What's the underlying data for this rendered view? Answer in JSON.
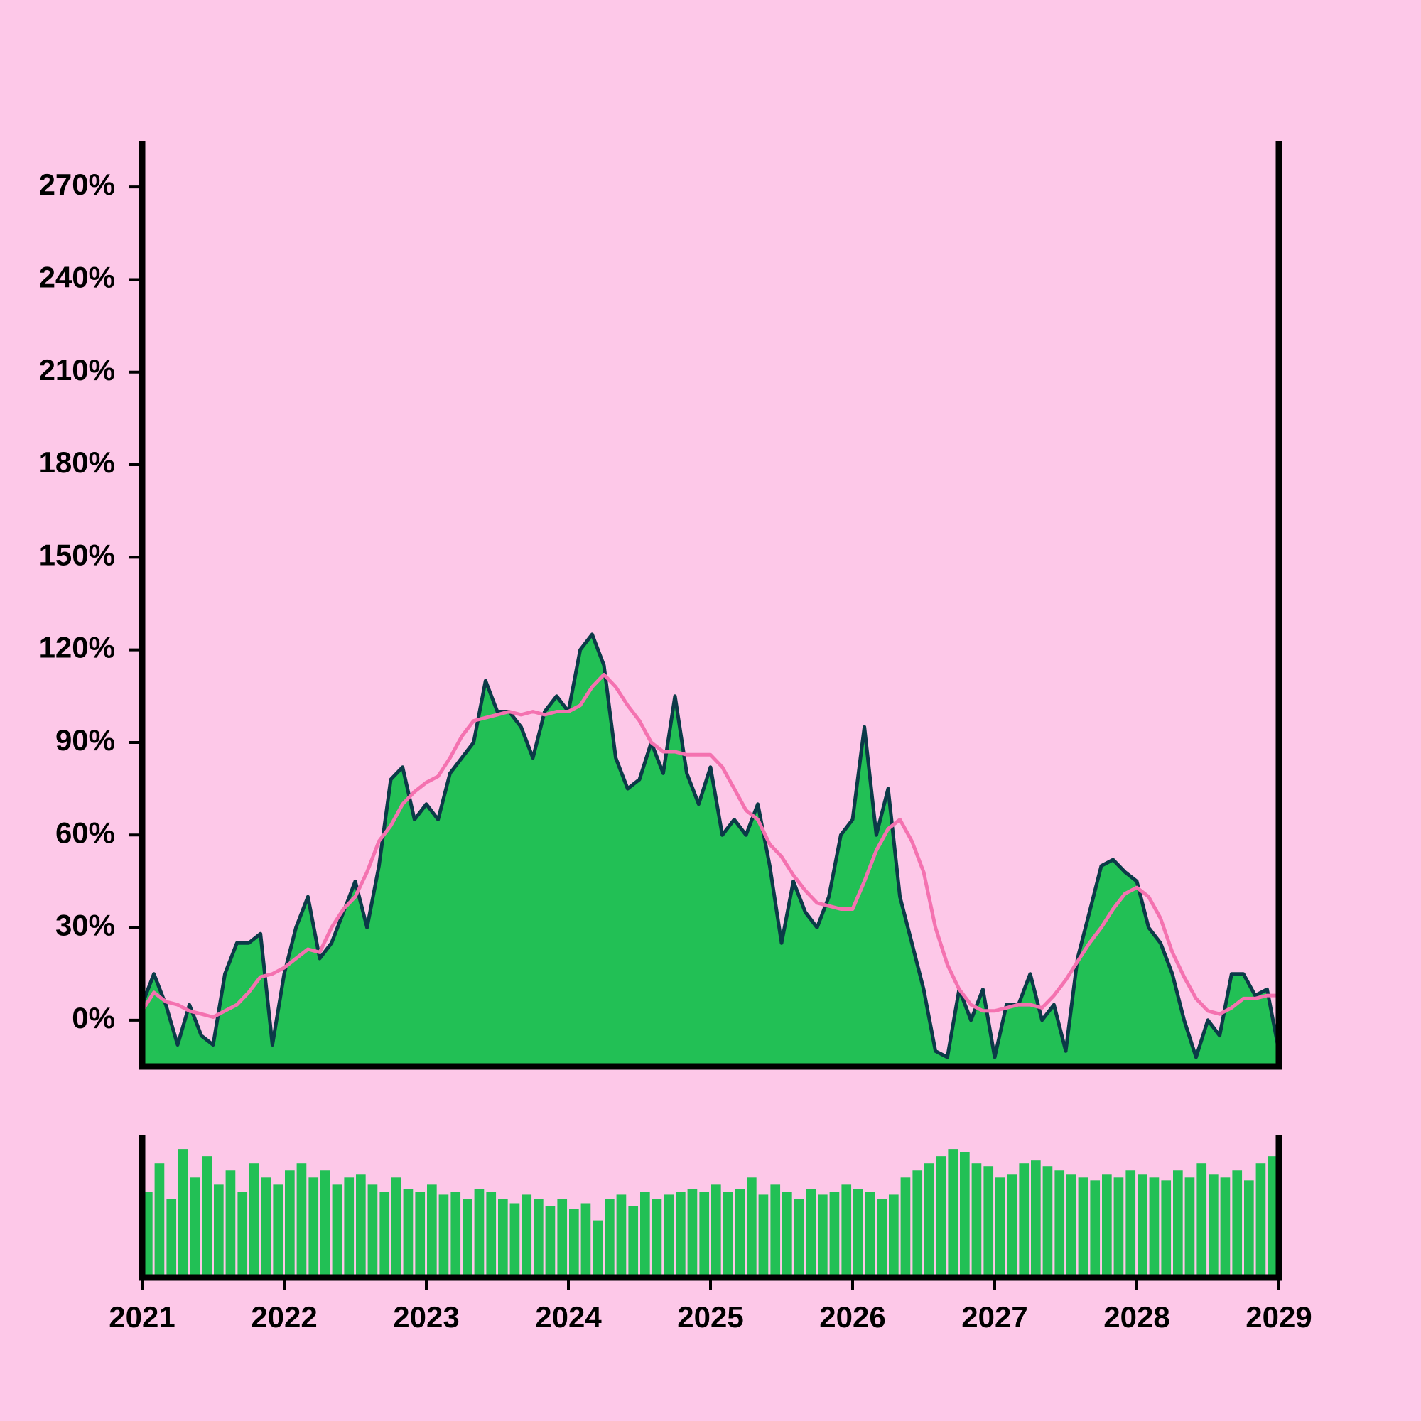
{
  "chart_data": [
    {
      "type": "area",
      "x": [
        2021,
        2021.083,
        2021.167,
        2021.25,
        2021.333,
        2021.417,
        2021.5,
        2021.583,
        2021.667,
        2021.75,
        2021.833,
        2021.917,
        2022,
        2022.083,
        2022.167,
        2022.25,
        2022.333,
        2022.417,
        2022.5,
        2022.583,
        2022.667,
        2022.75,
        2022.833,
        2022.917,
        2023,
        2023.083,
        2023.167,
        2023.25,
        2023.333,
        2023.417,
        2023.5,
        2023.583,
        2023.667,
        2023.75,
        2023.833,
        2023.917,
        2024,
        2024.083,
        2024.167,
        2024.25,
        2024.333,
        2024.417,
        2024.5,
        2024.583,
        2024.667,
        2024.75,
        2024.833,
        2024.917,
        2025,
        2025.083,
        2025.167,
        2025.25,
        2025.333,
        2025.417,
        2025.5,
        2025.583,
        2025.667,
        2025.75,
        2025.833,
        2025.917,
        2026,
        2026.083,
        2026.167,
        2026.25,
        2026.333,
        2026.417,
        2026.5,
        2026.583,
        2026.667,
        2026.75,
        2026.833,
        2026.917,
        2027,
        2027.083,
        2027.167,
        2027.25,
        2027.333,
        2027.417,
        2027.5,
        2027.583,
        2027.667,
        2027.75,
        2027.833,
        2027.917,
        2028,
        2028.083,
        2028.167,
        2028.25,
        2028.333,
        2028.417,
        2028.5,
        2028.583,
        2028.667,
        2028.75,
        2028.833,
        2028.917,
        2029
      ],
      "series": [
        {
          "color": "#22c055",
          "edge_color": "#0b3a48",
          "values": [
            5,
            15,
            5,
            -8,
            5,
            -5,
            -8,
            15,
            25,
            25,
            28,
            -8,
            15,
            30,
            40,
            20,
            25,
            35,
            45,
            30,
            50,
            78,
            82,
            65,
            70,
            65,
            80,
            85,
            90,
            110,
            100,
            100,
            95,
            85,
            100,
            105,
            100,
            120,
            125,
            115,
            85,
            75,
            78,
            90,
            80,
            105,
            80,
            70,
            82,
            60,
            65,
            60,
            70,
            50,
            25,
            45,
            35,
            30,
            40,
            60,
            65,
            95,
            60,
            75,
            40,
            25,
            10,
            -10,
            -12,
            10,
            0,
            10,
            -12,
            5,
            5,
            15,
            0,
            5,
            -10,
            20,
            35,
            50,
            52,
            48,
            45,
            30,
            25,
            15,
            0,
            -12,
            0,
            -5,
            15,
            15,
            8,
            10,
            -10
          ]
        },
        {
          "type": "line",
          "color": "#f472b0",
          "values": [
            3,
            9,
            6,
            5,
            3,
            2,
            1,
            3,
            5,
            9,
            14,
            15,
            17,
            20,
            23,
            22,
            30,
            36,
            40,
            48,
            58,
            63,
            70,
            74,
            77,
            79,
            85,
            92,
            97,
            98,
            99,
            100,
            99,
            100,
            99,
            100,
            100,
            102,
            108,
            112,
            108,
            102,
            97,
            90,
            87,
            87,
            86,
            86,
            86,
            82,
            75,
            68,
            65,
            57,
            53,
            47,
            42,
            38,
            37,
            36,
            36,
            45,
            55,
            62,
            65,
            58,
            48,
            30,
            18,
            10,
            5,
            3,
            3,
            4,
            5,
            5,
            4,
            8,
            13,
            19,
            25,
            30,
            36,
            41,
            43,
            40,
            33,
            22,
            14,
            7,
            3,
            2,
            4,
            7,
            7,
            8,
            8
          ]
        }
      ],
      "xlim": [
        2021,
        2029
      ],
      "ylim": [
        -15,
        285
      ],
      "yticks": [
        {
          "value": 0,
          "label": "0%"
        },
        {
          "value": 30,
          "label": "30%"
        },
        {
          "value": 60,
          "label": "60%"
        },
        {
          "value": 90,
          "label": "90%"
        },
        {
          "value": 120,
          "label": "120%"
        },
        {
          "value": 150,
          "label": "150%"
        },
        {
          "value": 180,
          "label": "180%"
        },
        {
          "value": 210,
          "label": "210%"
        },
        {
          "value": 240,
          "label": "240%"
        },
        {
          "value": 270,
          "label": "270%"
        }
      ]
    },
    {
      "type": "bar",
      "color": "#22c055",
      "x": [
        2021,
        2021.083,
        2021.167,
        2021.25,
        2021.333,
        2021.417,
        2021.5,
        2021.583,
        2021.667,
        2021.75,
        2021.833,
        2021.917,
        2022,
        2022.083,
        2022.167,
        2022.25,
        2022.333,
        2022.417,
        2022.5,
        2022.583,
        2022.667,
        2022.75,
        2022.833,
        2022.917,
        2023,
        2023.083,
        2023.167,
        2023.25,
        2023.333,
        2023.417,
        2023.5,
        2023.583,
        2023.667,
        2023.75,
        2023.833,
        2023.917,
        2024,
        2024.083,
        2024.167,
        2024.25,
        2024.333,
        2024.417,
        2024.5,
        2024.583,
        2024.667,
        2024.75,
        2024.833,
        2024.917,
        2025,
        2025.083,
        2025.167,
        2025.25,
        2025.333,
        2025.417,
        2025.5,
        2025.583,
        2025.667,
        2025.75,
        2025.833,
        2025.917,
        2026,
        2026.083,
        2026.167,
        2026.25,
        2026.333,
        2026.417,
        2026.5,
        2026.583,
        2026.667,
        2026.75,
        2026.833,
        2026.917,
        2027,
        2027.083,
        2027.167,
        2027.25,
        2027.333,
        2027.417,
        2027.5,
        2027.583,
        2027.667,
        2027.75,
        2027.833,
        2027.917,
        2028,
        2028.083,
        2028.167,
        2028.25,
        2028.333,
        2028.417,
        2028.5,
        2028.583,
        2028.667,
        2028.75,
        2028.833,
        2028.917
      ],
      "values": [
        60,
        80,
        55,
        90,
        70,
        85,
        65,
        75,
        60,
        80,
        70,
        65,
        75,
        80,
        70,
        75,
        65,
        70,
        72,
        65,
        60,
        70,
        62,
        60,
        65,
        58,
        60,
        55,
        62,
        60,
        55,
        52,
        58,
        55,
        50,
        55,
        48,
        52,
        40,
        55,
        58,
        50,
        60,
        55,
        58,
        60,
        62,
        60,
        65,
        60,
        62,
        70,
        58,
        65,
        60,
        55,
        62,
        58,
        60,
        65,
        62,
        60,
        55,
        58,
        70,
        75,
        80,
        85,
        90,
        88,
        80,
        78,
        70,
        72,
        80,
        82,
        78,
        75,
        72,
        70,
        68,
        72,
        70,
        75,
        72,
        70,
        68,
        75,
        70,
        80,
        72,
        70,
        75,
        68,
        80,
        85
      ],
      "xlim": [
        2021,
        2029
      ],
      "ylim": [
        0,
        100
      ],
      "xticks": [
        2021,
        2022,
        2023,
        2024,
        2025,
        2026,
        2027,
        2028,
        2029
      ]
    }
  ]
}
